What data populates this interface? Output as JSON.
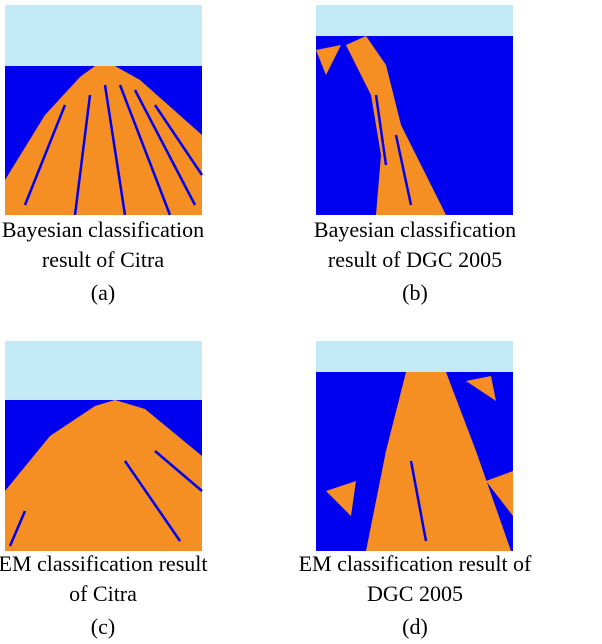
{
  "figures": [
    {
      "caption": [
        "Bayesian classification",
        "result of Citra"
      ],
      "label": "(a)"
    },
    {
      "caption": [
        "Bayesian classification",
        "result of DGC 2005"
      ],
      "label": "(b)"
    },
    {
      "caption": [
        "EM classification result",
        "of Citra"
      ],
      "label": "(c)"
    },
    {
      "caption": [
        "EM classification result of",
        "DGC 2005"
      ],
      "label": "(d)"
    }
  ]
}
